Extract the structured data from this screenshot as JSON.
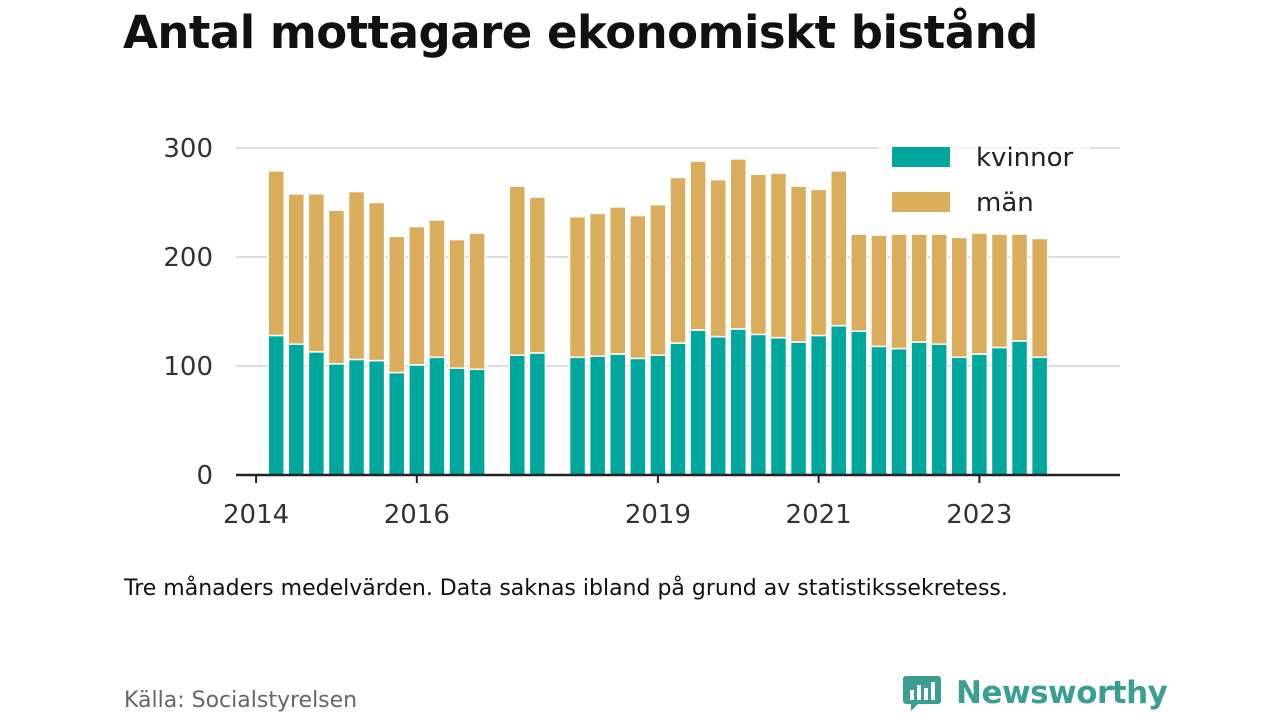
{
  "title": "Antal mottagare ekonomiskt bistånd",
  "note": "Tre månaders medelvärden. Data saknas ibland på grund av statistikssekretess.",
  "source": "Källa: Socialstyrelsen",
  "brand": {
    "name": "Newsworthy",
    "color": "#3a9e91",
    "icon": "bar-chart-speech-bubble-icon"
  },
  "colors": {
    "kvinnor": "#00a79d",
    "man": "#d9ad5b",
    "grid": "#dddddd",
    "axis": "#222222"
  },
  "chart_data": {
    "type": "bar",
    "stacked": true,
    "title": "Antal mottagare ekonomiskt bistånd",
    "xlabel": "",
    "ylabel": "",
    "ylim": [
      0,
      300
    ],
    "yticks": [
      0,
      100,
      200,
      300
    ],
    "xticks": [
      2014,
      2016,
      2019,
      2021,
      2023
    ],
    "xlim": [
      2013.75,
      2024.75
    ],
    "grid": true,
    "legend_placement": "top-right",
    "x": [
      2014.25,
      2014.5,
      2014.75,
      2015.0,
      2015.25,
      2015.5,
      2015.75,
      2016.0,
      2016.25,
      2016.5,
      2016.75,
      2017.25,
      2017.5,
      2018.0,
      2018.25,
      2018.5,
      2018.75,
      2019.0,
      2019.25,
      2019.5,
      2019.75,
      2020.0,
      2020.25,
      2020.5,
      2020.75,
      2021.0,
      2021.25,
      2021.5,
      2021.75,
      2022.0,
      2022.25,
      2022.5,
      2022.75,
      2023.0,
      2023.25,
      2023.5,
      2023.75
    ],
    "series": [
      {
        "name": "kvinnor",
        "values": [
          128,
          120,
          113,
          102,
          106,
          105,
          94,
          101,
          108,
          98,
          97,
          110,
          112,
          108,
          109,
          111,
          107,
          110,
          121,
          133,
          127,
          134,
          129,
          126,
          122,
          128,
          137,
          132,
          118,
          116,
          122,
          120,
          108,
          111,
          117,
          123,
          108
        ]
      },
      {
        "name": "män",
        "values": [
          151,
          138,
          145,
          141,
          154,
          145,
          125,
          127,
          126,
          118,
          125,
          155,
          143,
          129,
          131,
          135,
          131,
          138,
          152,
          155,
          144,
          156,
          147,
          151,
          143,
          134,
          142,
          89,
          102,
          105,
          99,
          101,
          110,
          111,
          104,
          98,
          109
        ]
      }
    ]
  }
}
